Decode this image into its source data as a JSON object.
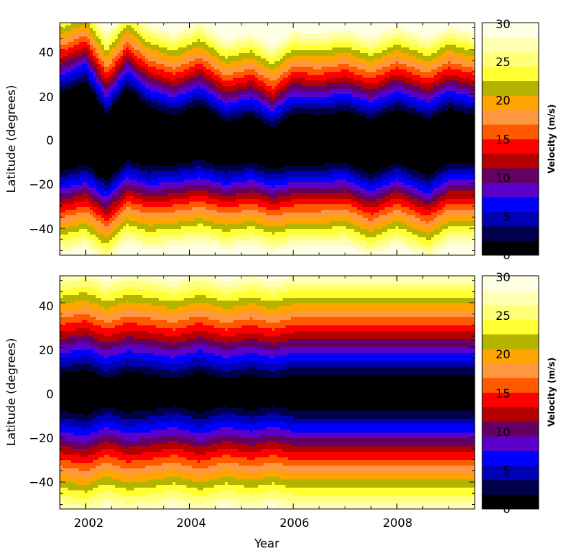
{
  "chart_data": [
    {
      "type": "heatmap",
      "panel": "top",
      "xlabel": "",
      "ylabel": "Latitude (degrees)",
      "xlim": [
        2001.5,
        2009.5
      ],
      "ylim": [
        -52,
        52
      ],
      "x_ticks": [
        "2002",
        "2004",
        "2006",
        "2008"
      ],
      "y_ticks": [
        "40",
        "20",
        "0",
        "−20",
        "−40"
      ],
      "x_tick_values": [
        2002,
        2004,
        2006,
        2008
      ],
      "y_tick_values": [
        40,
        20,
        0,
        -20,
        -40
      ],
      "z_label": "Velocity (m/s)",
      "z_range": [
        0,
        30
      ],
      "z_ticks": [
        "30",
        "25",
        "20",
        "15",
        "10",
        "5",
        "0"
      ],
      "z_tick_values": [
        30,
        25,
        20,
        15,
        10,
        5,
        0
      ],
      "levels": [
        0,
        2.5,
        5,
        7.5,
        10,
        12.5,
        15,
        17.5,
        20,
        22.5,
        25,
        27.5,
        30
      ],
      "years": [
        2001.5,
        2002.0,
        2002.4,
        2002.8,
        2003.2,
        2003.7,
        2004.2,
        2004.7,
        2005.2,
        2005.6,
        2006.0,
        2006.5,
        2007.0,
        2007.5,
        2008.0,
        2008.6,
        2009.0,
        2009.5
      ],
      "north_edge_deg": [
        18,
        23,
        8,
        20,
        12,
        8,
        13,
        5,
        8,
        2,
        9,
        8,
        10,
        6,
        11,
        6,
        11,
        8
      ],
      "south_edge_deg": [
        -12,
        -9,
        -16,
        -7,
        -10,
        -9,
        -7,
        -10,
        -8,
        -11,
        -9,
        -9,
        -8,
        -13,
        -8,
        -14,
        -8,
        -8
      ]
    },
    {
      "type": "heatmap",
      "panel": "bottom",
      "xlabel": "Year",
      "ylabel": "Latitude (degrees)",
      "xlim": [
        2001.5,
        2009.5
      ],
      "ylim": [
        -52,
        52
      ],
      "x_ticks": [
        "2002",
        "2004",
        "2006",
        "2008"
      ],
      "y_ticks": [
        "40",
        "20",
        "0",
        "−20",
        "−40"
      ],
      "x_tick_values": [
        2002,
        2004,
        2006,
        2008
      ],
      "y_tick_values": [
        40,
        20,
        0,
        -20,
        -40
      ],
      "z_label": "Velocity (m/s)",
      "z_range": [
        0,
        30
      ],
      "z_ticks": [
        "30",
        "25",
        "20",
        "15",
        "10",
        "5",
        "0"
      ],
      "z_tick_values": [
        30,
        25,
        20,
        15,
        10,
        5,
        0
      ],
      "levels": [
        0,
        2.5,
        5,
        7.5,
        10,
        12.5,
        15,
        17.5,
        20,
        22.5,
        25,
        27.5,
        30
      ],
      "years": [
        2001.5,
        2002.0,
        2002.4,
        2002.8,
        2003.2,
        2003.7,
        2004.2,
        2004.7,
        2005.2,
        2005.6,
        2006.0,
        2006.5,
        2007.0,
        2007.5,
        2008.0,
        2008.6,
        2009.0,
        2009.5
      ],
      "north_edge_deg": [
        5,
        7,
        3,
        6,
        5,
        3,
        6,
        3,
        5,
        3,
        5,
        5,
        5,
        5,
        5,
        5,
        5,
        5
      ],
      "south_edge_deg": [
        -5,
        -7,
        -3,
        -6,
        -5,
        -3,
        -6,
        -3,
        -5,
        -3,
        -5,
        -5,
        -5,
        -5,
        -5,
        -5,
        -5,
        -5
      ]
    }
  ],
  "colorbar_colors": [
    "#000000",
    "#00004d",
    "#0000b4",
    "#0000ff",
    "#5a00c8",
    "#640064",
    "#b40000",
    "#ff0000",
    "#ff5a00",
    "#ff9640",
    "#ffa500",
    "#b4b400",
    "#ffff32",
    "#ffff78",
    "#ffffb4",
    "#ffffe6"
  ],
  "colorbar_bands": 12
}
